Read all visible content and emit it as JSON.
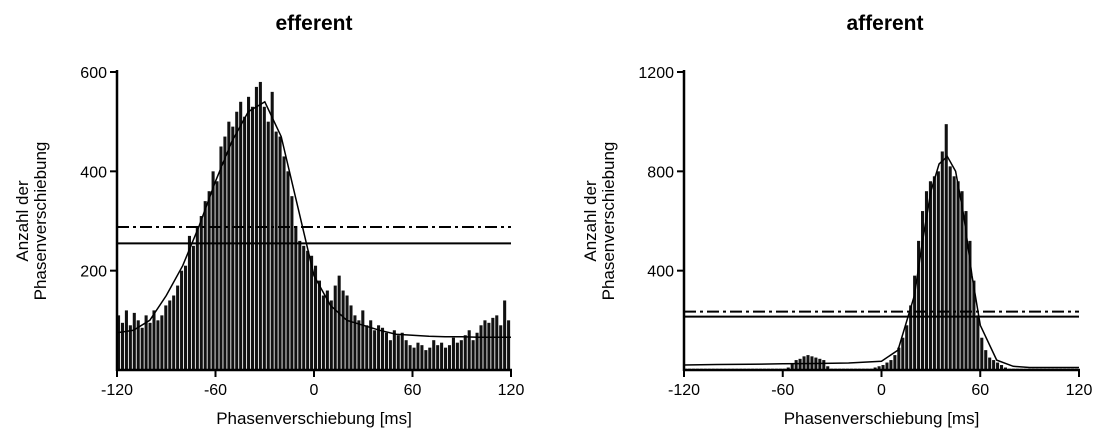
{
  "chart_data": [
    {
      "type": "bar",
      "title": "efferent",
      "xlabel": "Phasenverschiebung [ms]",
      "ylabel": [
        "Anzahl der",
        "Phasenverschiebung"
      ],
      "xlim": [
        -120,
        120
      ],
      "ylim": [
        0,
        600
      ],
      "xticks": [
        -120,
        -60,
        0,
        60,
        120
      ],
      "yticks": [
        200,
        400,
        600
      ],
      "bin_width": 2.4,
      "bins_x": [
        -118.8,
        -116.4,
        -114.0,
        -111.6,
        -109.2,
        -106.8,
        -104.4,
        -102.0,
        -99.6,
        -97.2,
        -94.8,
        -92.4,
        -90.0,
        -87.6,
        -85.2,
        -82.8,
        -80.4,
        -78.0,
        -75.6,
        -73.2,
        -70.8,
        -68.4,
        -66.0,
        -63.6,
        -61.2,
        -58.8,
        -56.4,
        -54.0,
        -51.6,
        -49.2,
        -46.8,
        -44.4,
        -42.0,
        -39.6,
        -37.2,
        -34.8,
        -32.4,
        -30.0,
        -27.6,
        -25.2,
        -22.8,
        -20.4,
        -18.0,
        -15.6,
        -13.2,
        -10.8,
        -8.4,
        -6.0,
        -3.6,
        -1.2,
        1.2,
        3.6,
        6.0,
        8.4,
        10.8,
        13.2,
        15.6,
        18.0,
        20.4,
        22.8,
        25.2,
        27.6,
        30.0,
        32.4,
        34.8,
        37.2,
        39.6,
        42.0,
        44.4,
        46.8,
        49.2,
        51.6,
        54.0,
        56.4,
        58.8,
        61.2,
        63.6,
        66.0,
        68.4,
        70.8,
        73.2,
        75.6,
        78.0,
        80.4,
        82.8,
        85.2,
        87.6,
        90.0,
        92.4,
        94.8,
        97.2,
        99.6,
        102.0,
        104.4,
        106.8,
        109.2,
        111.6,
        114.0,
        116.4,
        118.8
      ],
      "counts": [
        110,
        95,
        120,
        90,
        115,
        100,
        85,
        110,
        95,
        120,
        100,
        110,
        130,
        140,
        150,
        170,
        200,
        210,
        270,
        250,
        290,
        310,
        340,
        360,
        400,
        380,
        450,
        470,
        500,
        490,
        520,
        540,
        510,
        550,
        530,
        570,
        580,
        530,
        500,
        560,
        480,
        470,
        430,
        400,
        350,
        290,
        260,
        250,
        240,
        230,
        210,
        180,
        150,
        160,
        140,
        170,
        190,
        160,
        150,
        130,
        110,
        100,
        120,
        90,
        100,
        80,
        90,
        85,
        75,
        60,
        80,
        70,
        75,
        60,
        50,
        45,
        55,
        50,
        40,
        45,
        60,
        50,
        55,
        45,
        50,
        65,
        55,
        60,
        70,
        80,
        60,
        75,
        90,
        100,
        95,
        105,
        110,
        90,
        140,
        100
      ],
      "fit": {
        "x": [
          -120,
          -110,
          -100,
          -90,
          -80,
          -70,
          -60,
          -50,
          -40,
          -30,
          -20,
          -10,
          0,
          10,
          20,
          30,
          40,
          50,
          60,
          70,
          80,
          90,
          100,
          110,
          120
        ],
        "y": [
          75,
          80,
          100,
          150,
          210,
          290,
          380,
          460,
          520,
          540,
          470,
          330,
          190,
          130,
          100,
          90,
          80,
          72,
          70,
          68,
          67,
          67,
          66,
          66,
          66
        ]
      },
      "reference_lines": [
        {
          "style": "dash-dot",
          "y": 288
        },
        {
          "style": "solid",
          "y": 255
        }
      ]
    },
    {
      "type": "bar",
      "title": "afferent",
      "xlabel": "Phasenverschiebung [ms]",
      "ylabel": [
        "Anzahl der",
        "Phasenverschiebung"
      ],
      "xlim": [
        -120,
        120
      ],
      "ylim": [
        0,
        1200
      ],
      "xticks": [
        -120,
        -60,
        0,
        60,
        120
      ],
      "yticks": [
        400,
        800,
        1200
      ],
      "bin_width": 2.4,
      "bins_x": [
        -118.8,
        -116.4,
        -114.0,
        -111.6,
        -109.2,
        -106.8,
        -104.4,
        -102.0,
        -99.6,
        -97.2,
        -94.8,
        -92.4,
        -90.0,
        -87.6,
        -85.2,
        -82.8,
        -80.4,
        -78.0,
        -75.6,
        -73.2,
        -70.8,
        -68.4,
        -66.0,
        -63.6,
        -61.2,
        -58.8,
        -56.4,
        -54.0,
        -51.6,
        -49.2,
        -46.8,
        -44.4,
        -42.0,
        -39.6,
        -37.2,
        -34.8,
        -32.4,
        -30.0,
        -27.6,
        -25.2,
        -22.8,
        -20.4,
        -18.0,
        -15.6,
        -13.2,
        -10.8,
        -8.4,
        -6.0,
        -3.6,
        -1.2,
        1.2,
        3.6,
        6.0,
        8.4,
        10.8,
        13.2,
        15.6,
        18.0,
        20.4,
        22.8,
        25.2,
        27.6,
        30.0,
        32.4,
        34.8,
        37.2,
        39.6,
        42.0,
        44.4,
        46.8,
        49.2,
        51.6,
        54.0,
        56.4,
        58.8,
        61.2,
        63.6,
        66.0,
        68.4,
        70.8,
        73.2,
        75.6,
        78.0,
        80.4,
        82.8,
        85.2,
        87.6,
        90.0,
        92.4,
        94.8,
        97.2,
        99.6,
        102.0,
        104.4,
        106.8,
        109.2,
        111.6,
        114.0,
        116.4,
        118.8
      ],
      "counts": [
        5,
        5,
        5,
        5,
        5,
        5,
        5,
        5,
        5,
        5,
        5,
        5,
        5,
        5,
        5,
        5,
        5,
        5,
        5,
        5,
        5,
        5,
        5,
        5,
        5,
        5,
        10,
        25,
        40,
        45,
        55,
        60,
        55,
        50,
        45,
        40,
        15,
        5,
        5,
        5,
        5,
        5,
        5,
        5,
        5,
        5,
        5,
        5,
        10,
        15,
        20,
        30,
        40,
        60,
        90,
        130,
        180,
        260,
        380,
        520,
        640,
        720,
        760,
        780,
        800,
        880,
        990,
        820,
        780,
        760,
        720,
        640,
        520,
        360,
        220,
        130,
        80,
        50,
        40,
        30,
        20,
        10,
        5,
        5,
        5,
        5,
        5,
        5,
        5,
        5,
        5,
        5,
        5,
        5,
        5,
        5,
        5,
        5,
        5,
        5
      ],
      "fit": {
        "x": [
          -120,
          -100,
          -80,
          -60,
          -40,
          -20,
          0,
          10,
          20,
          25,
          30,
          35,
          40,
          45,
          50,
          55,
          60,
          70,
          80,
          90,
          100,
          110,
          120
        ],
        "y": [
          20,
          22,
          23,
          25,
          26,
          28,
          35,
          80,
          300,
          520,
          720,
          830,
          860,
          800,
          620,
          380,
          180,
          40,
          15,
          10,
          10,
          10,
          10
        ]
      },
      "reference_lines": [
        {
          "style": "dash-dot",
          "y": 235
        },
        {
          "style": "solid",
          "y": 215
        }
      ]
    }
  ]
}
